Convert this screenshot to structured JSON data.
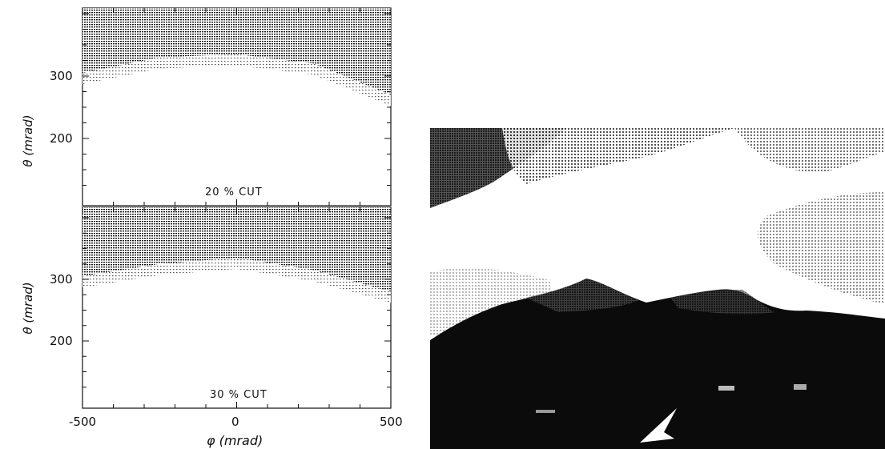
{
  "figure": {
    "panels": [
      {
        "cut_label": "20 % CUT",
        "ylabel": "θ (mrad)",
        "yticks": [
          "300",
          "200"
        ]
      },
      {
        "cut_label": "30 % CUT",
        "ylabel": "θ (mrad)",
        "yticks": [
          "300",
          "200"
        ]
      }
    ],
    "xlabel": "φ (mrad)",
    "xticks": [
      "-500",
      "0",
      "500"
    ]
  },
  "chart_data": [
    {
      "type": "heatmap",
      "title": "",
      "annotation": "20 % CUT",
      "xlabel": "",
      "ylabel": "θ (mrad)",
      "xlim": [
        -500,
        500
      ],
      "ylim": [
        100,
        400
      ],
      "ytick_labels": [
        "300",
        "200"
      ],
      "note": "dense dot-shaded region above boundary",
      "boundary": [
        {
          "x": -500,
          "y": 305
        },
        {
          "x": -250,
          "y": 330
        },
        {
          "x": 0,
          "y": 335
        },
        {
          "x": 250,
          "y": 320
        },
        {
          "x": 500,
          "y": 270
        }
      ]
    },
    {
      "type": "heatmap",
      "title": "",
      "annotation": "30 % CUT",
      "xlabel": "φ (mrad)",
      "ylabel": "θ (mrad)",
      "xlim": [
        -500,
        500
      ],
      "ylim": [
        100,
        400
      ],
      "xtick_labels": [
        "-500",
        "0",
        "500"
      ],
      "ytick_labels": [
        "300",
        "200"
      ],
      "boundary": [
        {
          "x": -500,
          "y": 305
        },
        {
          "x": -250,
          "y": 325
        },
        {
          "x": 0,
          "y": 335
        },
        {
          "x": 250,
          "y": 315
        },
        {
          "x": 500,
          "y": 280
        }
      ]
    }
  ],
  "photo": {
    "description_icon": "mountain-landscape-photo",
    "colors": {
      "sky_dark": "#2a2a2a",
      "mountain": "#0a0a0a",
      "sky_light": "#ffffff"
    }
  }
}
